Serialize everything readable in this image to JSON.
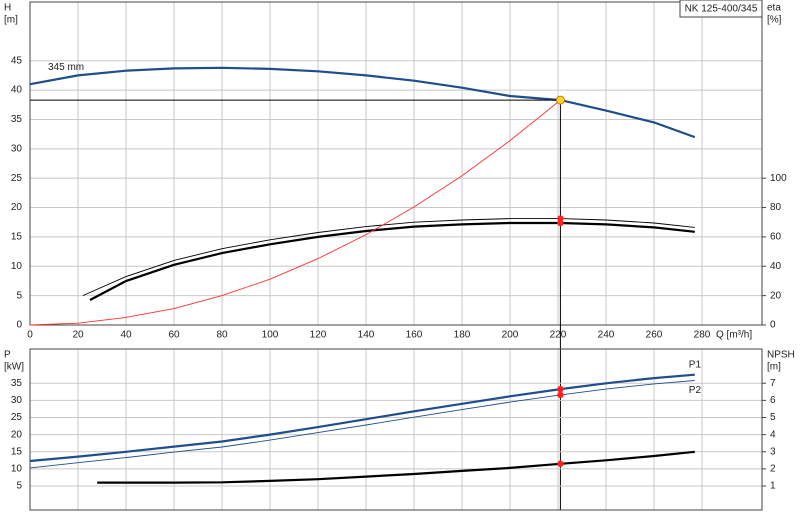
{
  "chart_data": [
    {
      "type": "line",
      "title": "NK 125-400/345",
      "ylabel": [
        "H",
        "[m]"
      ],
      "y2label": [
        "eta",
        "[%]"
      ],
      "xlabel": "Q [m³/h]",
      "xlim": [
        0,
        305
      ],
      "xticks": [
        0,
        20,
        40,
        60,
        80,
        100,
        120,
        140,
        160,
        180,
        200,
        220,
        240,
        260,
        280
      ],
      "ylim": [
        0,
        55
      ],
      "yticks": [
        0,
        5,
        10,
        15,
        20,
        25,
        30,
        35,
        40,
        45
      ],
      "y2lim": [
        0,
        220
      ],
      "y2ticks": [
        0,
        20,
        40,
        60,
        80,
        100
      ],
      "grid": true,
      "series": [
        {
          "name": "345 mm",
          "color": "#1f4e8c",
          "style": "thick",
          "x": [
            0,
            20,
            40,
            60,
            80,
            100,
            120,
            140,
            160,
            180,
            200,
            221,
            240,
            260,
            277
          ],
          "values": [
            41,
            42.5,
            43.3,
            43.7,
            43.8,
            43.6,
            43.2,
            42.5,
            41.6,
            40.4,
            39,
            38.3,
            36.5,
            34.5,
            32
          ]
        },
        {
          "color": "#000000",
          "style": "thin",
          "axis": "y2",
          "x": [
            22,
            40,
            60,
            80,
            100,
            120,
            140,
            160,
            180,
            200,
            221,
            240,
            260,
            277
          ],
          "values": [
            20,
            33,
            44,
            52,
            58,
            63,
            67,
            70,
            71.5,
            72.5,
            72.5,
            71.5,
            69.5,
            66.5
          ]
        },
        {
          "color": "#000000",
          "style": "thick",
          "axis": "y2",
          "x": [
            25,
            40,
            60,
            80,
            100,
            120,
            140,
            160,
            180,
            200,
            221,
            240,
            260,
            277
          ],
          "values": [
            17,
            30,
            41,
            49,
            55,
            60,
            64,
            67,
            68.5,
            69.5,
            69.5,
            68.5,
            66.5,
            63.5
          ]
        },
        {
          "color": "#ff3030",
          "style": "thin",
          "x": [
            0,
            20,
            40,
            60,
            80,
            100,
            120,
            140,
            160,
            180,
            200,
            221
          ],
          "values": [
            0,
            0.3,
            1.3,
            2.8,
            5,
            7.8,
            11.3,
            15.4,
            20.1,
            25.4,
            31.4,
            38.3
          ]
        }
      ],
      "duty": {
        "x": 221,
        "y": 38.3,
        "y2": [
          72.5,
          69.5
        ]
      }
    },
    {
      "type": "line",
      "ylabel": [
        "P",
        "[kW]"
      ],
      "y2label": [
        "NPSH",
        "[m]"
      ],
      "xlim": [
        0,
        305
      ],
      "ylim": [
        -2,
        45
      ],
      "yticks": [
        5,
        10,
        15,
        20,
        25,
        30,
        35
      ],
      "y2lim": [
        -0.4,
        9
      ],
      "y2ticks": [
        1,
        2,
        3,
        4,
        5,
        6,
        7
      ],
      "grid": true,
      "series": [
        {
          "name": "P1",
          "color": "#1f4e8c",
          "style": "thick",
          "x": [
            0,
            20,
            40,
            60,
            80,
            100,
            120,
            140,
            160,
            180,
            200,
            221,
            240,
            260,
            277
          ],
          "values": [
            12.3,
            13.6,
            15,
            16.5,
            18,
            20,
            22.2,
            24.5,
            26.8,
            29,
            31.2,
            33.3,
            35,
            36.5,
            37.5
          ]
        },
        {
          "name": "P2",
          "color": "#1f4e8c",
          "style": "thin",
          "x": [
            0,
            20,
            40,
            60,
            80,
            100,
            120,
            140,
            160,
            180,
            200,
            221,
            240,
            260,
            277
          ],
          "values": [
            10.3,
            11.8,
            13.3,
            14.9,
            16.4,
            18.4,
            20.6,
            22.8,
            25.1,
            27.3,
            29.5,
            31.6,
            33.3,
            34.8,
            35.8
          ]
        },
        {
          "color": "#000000",
          "style": "thick",
          "axis": "y2",
          "x": [
            28,
            60,
            80,
            100,
            120,
            140,
            160,
            180,
            200,
            221,
            240,
            260,
            277
          ],
          "values": [
            1.2,
            1.2,
            1.22,
            1.3,
            1.4,
            1.55,
            1.7,
            1.88,
            2.06,
            2.3,
            2.5,
            2.75,
            3
          ]
        }
      ],
      "duty": {
        "x": 221,
        "y": [
          33.3,
          31.6
        ],
        "y2": 2.3
      }
    }
  ]
}
